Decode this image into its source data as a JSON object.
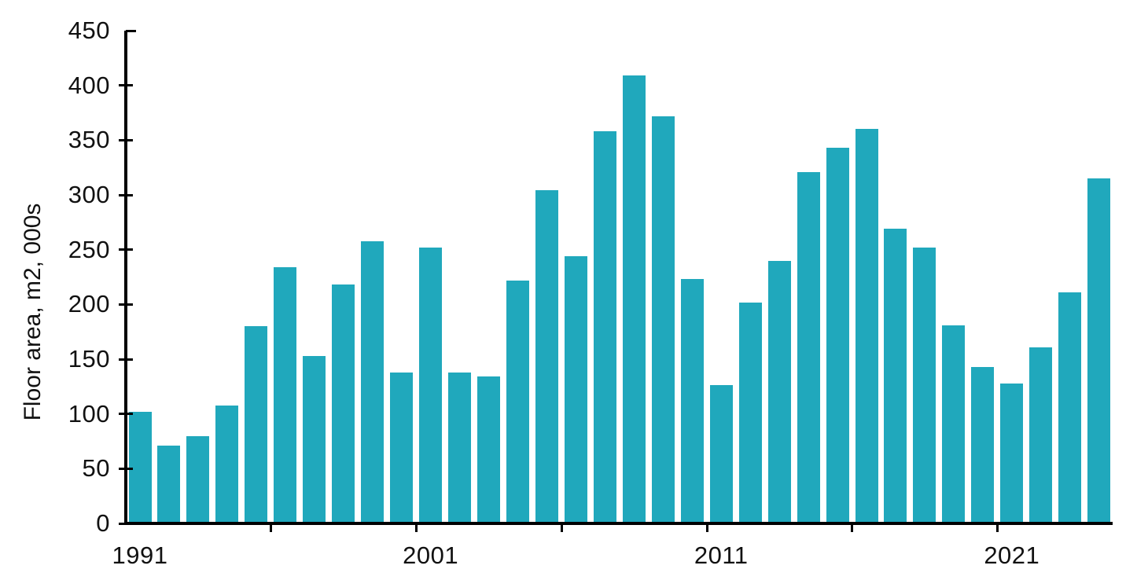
{
  "chart_data": {
    "type": "bar",
    "title": "",
    "xlabel": "",
    "ylabel": "Floor area, m2, 000s",
    "ylim": [
      0,
      450
    ],
    "yticks": [
      0,
      50,
      100,
      150,
      200,
      250,
      300,
      350,
      400,
      450
    ],
    "ytick_labels": [
      "0",
      "50",
      "100",
      "150",
      "200",
      "250",
      "300",
      "350",
      "400",
      "450"
    ],
    "categories": [
      1991,
      1992,
      1993,
      1994,
      1995,
      1996,
      1997,
      1998,
      1999,
      2000,
      2001,
      2002,
      2003,
      2004,
      2005,
      2006,
      2007,
      2008,
      2009,
      2010,
      2011,
      2012,
      2013,
      2014,
      2015,
      2016,
      2017,
      2018,
      2019,
      2020,
      2021,
      2022,
      2023,
      2024
    ],
    "values": [
      102,
      71,
      80,
      108,
      180,
      234,
      153,
      218,
      258,
      138,
      252,
      138,
      134,
      222,
      304,
      244,
      358,
      409,
      372,
      223,
      126,
      202,
      240,
      321,
      343,
      360,
      269,
      252,
      181,
      143,
      128,
      161,
      211,
      315
    ],
    "xtick_labels": [
      {
        "label": "1991",
        "index": 0
      },
      {
        "label": "2001",
        "index": 10
      },
      {
        "label": "2011",
        "index": 20
      },
      {
        "label": "2021",
        "index": 30
      }
    ],
    "x_boundary_tick_indices": [
      5,
      10,
      15,
      20,
      25,
      30
    ],
    "grid": false,
    "legend_position": "none",
    "bar_color": "#20a8bc",
    "axis_color": "#000000",
    "text_color": "#111111",
    "background_color": "#ffffff"
  }
}
